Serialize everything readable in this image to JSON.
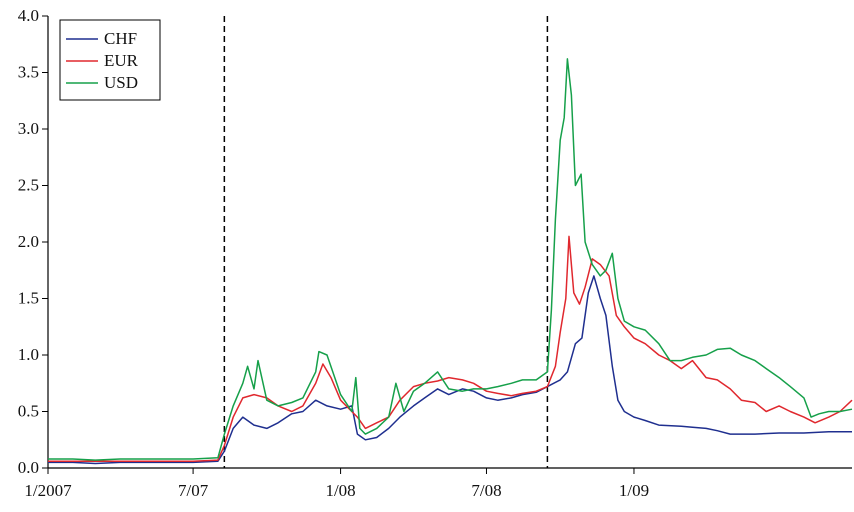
{
  "chart_data": {
    "type": "line",
    "title": "",
    "xlabel": "",
    "ylabel": "",
    "xlim": [
      "2007-01-01",
      "2009-09-30"
    ],
    "ylim": [
      0.0,
      4.0
    ],
    "x_tick_labels": [
      {
        "date": "2007-01-01",
        "label": "1/2007"
      },
      {
        "date": "2007-07-01",
        "label": "7/07"
      },
      {
        "date": "2008-01-01",
        "label": "1/08"
      },
      {
        "date": "2008-07-01",
        "label": "7/08"
      },
      {
        "date": "2009-01-01",
        "label": "1/09"
      }
    ],
    "y_tick_labels": [
      "0.0",
      "0.5",
      "1.0",
      "1.5",
      "2.0",
      "2.5",
      "3.0",
      "3.5",
      "4.0"
    ],
    "y_ticks": [
      0.0,
      0.5,
      1.0,
      1.5,
      2.0,
      2.5,
      3.0,
      3.5,
      4.0
    ],
    "grid": false,
    "legend_position": "top-left",
    "vertical_lines": [
      "2007-08-09",
      "2008-09-15"
    ],
    "series": [
      {
        "name": "CHF",
        "color": "#1f2f8f",
        "points": [
          [
            "2007-01-01",
            0.05
          ],
          [
            "2007-02-01",
            0.05
          ],
          [
            "2007-03-01",
            0.04
          ],
          [
            "2007-04-01",
            0.05
          ],
          [
            "2007-05-01",
            0.05
          ],
          [
            "2007-06-01",
            0.05
          ],
          [
            "2007-07-01",
            0.05
          ],
          [
            "2007-08-01",
            0.06
          ],
          [
            "2007-08-09",
            0.15
          ],
          [
            "2007-08-20",
            0.35
          ],
          [
            "2007-09-01",
            0.45
          ],
          [
            "2007-09-15",
            0.38
          ],
          [
            "2007-10-01",
            0.35
          ],
          [
            "2007-10-15",
            0.4
          ],
          [
            "2007-11-01",
            0.48
          ],
          [
            "2007-11-15",
            0.5
          ],
          [
            "2007-12-01",
            0.6
          ],
          [
            "2007-12-15",
            0.55
          ],
          [
            "2008-01-01",
            0.52
          ],
          [
            "2008-01-15",
            0.55
          ],
          [
            "2008-01-22",
            0.3
          ],
          [
            "2008-02-01",
            0.25
          ],
          [
            "2008-02-15",
            0.27
          ],
          [
            "2008-03-01",
            0.35
          ],
          [
            "2008-03-15",
            0.45
          ],
          [
            "2008-04-01",
            0.55
          ],
          [
            "2008-04-15",
            0.62
          ],
          [
            "2008-05-01",
            0.7
          ],
          [
            "2008-05-15",
            0.65
          ],
          [
            "2008-06-01",
            0.7
          ],
          [
            "2008-06-15",
            0.68
          ],
          [
            "2008-07-01",
            0.62
          ],
          [
            "2008-07-15",
            0.6
          ],
          [
            "2008-08-01",
            0.62
          ],
          [
            "2008-08-15",
            0.65
          ],
          [
            "2008-09-01",
            0.67
          ],
          [
            "2008-09-15",
            0.72
          ],
          [
            "2008-10-01",
            0.78
          ],
          [
            "2008-10-10",
            0.85
          ],
          [
            "2008-10-20",
            1.1
          ],
          [
            "2008-10-28",
            1.15
          ],
          [
            "2008-11-05",
            1.55
          ],
          [
            "2008-11-12",
            1.7
          ],
          [
            "2008-11-20",
            1.5
          ],
          [
            "2008-11-27",
            1.35
          ],
          [
            "2008-12-05",
            0.9
          ],
          [
            "2008-12-12",
            0.6
          ],
          [
            "2008-12-20",
            0.5
          ],
          [
            "2009-01-01",
            0.45
          ],
          [
            "2009-01-15",
            0.42
          ],
          [
            "2009-02-01",
            0.38
          ],
          [
            "2009-03-01",
            0.37
          ],
          [
            "2009-03-15",
            0.36
          ],
          [
            "2009-04-01",
            0.35
          ],
          [
            "2009-04-15",
            0.33
          ],
          [
            "2009-05-01",
            0.3
          ],
          [
            "2009-06-01",
            0.3
          ],
          [
            "2009-07-01",
            0.31
          ],
          [
            "2009-08-01",
            0.31
          ],
          [
            "2009-09-01",
            0.32
          ],
          [
            "2009-09-30",
            0.32
          ]
        ]
      },
      {
        "name": "EUR",
        "color": "#e0282e",
        "points": [
          [
            "2007-01-01",
            0.06
          ],
          [
            "2007-02-01",
            0.06
          ],
          [
            "2007-03-01",
            0.06
          ],
          [
            "2007-04-01",
            0.06
          ],
          [
            "2007-05-01",
            0.06
          ],
          [
            "2007-06-01",
            0.06
          ],
          [
            "2007-07-01",
            0.06
          ],
          [
            "2007-08-01",
            0.07
          ],
          [
            "2007-08-09",
            0.2
          ],
          [
            "2007-08-20",
            0.45
          ],
          [
            "2007-09-01",
            0.62
          ],
          [
            "2007-09-15",
            0.65
          ],
          [
            "2007-10-01",
            0.62
          ],
          [
            "2007-10-15",
            0.55
          ],
          [
            "2007-11-01",
            0.5
          ],
          [
            "2007-11-15",
            0.55
          ],
          [
            "2007-12-01",
            0.75
          ],
          [
            "2007-12-10",
            0.92
          ],
          [
            "2007-12-20",
            0.8
          ],
          [
            "2008-01-01",
            0.6
          ],
          [
            "2008-01-15",
            0.5
          ],
          [
            "2008-01-22",
            0.45
          ],
          [
            "2008-02-01",
            0.35
          ],
          [
            "2008-02-15",
            0.4
          ],
          [
            "2008-03-01",
            0.45
          ],
          [
            "2008-03-15",
            0.6
          ],
          [
            "2008-04-01",
            0.72
          ],
          [
            "2008-04-15",
            0.75
          ],
          [
            "2008-05-01",
            0.77
          ],
          [
            "2008-05-15",
            0.8
          ],
          [
            "2008-06-01",
            0.78
          ],
          [
            "2008-06-15",
            0.75
          ],
          [
            "2008-07-01",
            0.68
          ],
          [
            "2008-07-15",
            0.66
          ],
          [
            "2008-08-01",
            0.64
          ],
          [
            "2008-08-15",
            0.66
          ],
          [
            "2008-09-01",
            0.68
          ],
          [
            "2008-09-15",
            0.72
          ],
          [
            "2008-09-25",
            0.9
          ],
          [
            "2008-10-01",
            1.2
          ],
          [
            "2008-10-08",
            1.5
          ],
          [
            "2008-10-12",
            2.05
          ],
          [
            "2008-10-18",
            1.55
          ],
          [
            "2008-10-25",
            1.45
          ],
          [
            "2008-11-01",
            1.6
          ],
          [
            "2008-11-10",
            1.85
          ],
          [
            "2008-11-20",
            1.8
          ],
          [
            "2008-12-01",
            1.7
          ],
          [
            "2008-12-10",
            1.35
          ],
          [
            "2008-12-20",
            1.25
          ],
          [
            "2009-01-01",
            1.15
          ],
          [
            "2009-01-15",
            1.1
          ],
          [
            "2009-02-01",
            1.0
          ],
          [
            "2009-02-15",
            0.95
          ],
          [
            "2009-03-01",
            0.88
          ],
          [
            "2009-03-15",
            0.95
          ],
          [
            "2009-04-01",
            0.8
          ],
          [
            "2009-04-15",
            0.78
          ],
          [
            "2009-05-01",
            0.7
          ],
          [
            "2009-05-15",
            0.6
          ],
          [
            "2009-06-01",
            0.58
          ],
          [
            "2009-06-15",
            0.5
          ],
          [
            "2009-07-01",
            0.55
          ],
          [
            "2009-07-15",
            0.5
          ],
          [
            "2009-08-01",
            0.45
          ],
          [
            "2009-08-15",
            0.4
          ],
          [
            "2009-09-01",
            0.45
          ],
          [
            "2009-09-15",
            0.5
          ],
          [
            "2009-09-30",
            0.6
          ]
        ]
      },
      {
        "name": "USD",
        "color": "#16a04a",
        "points": [
          [
            "2007-01-01",
            0.08
          ],
          [
            "2007-02-01",
            0.08
          ],
          [
            "2007-03-01",
            0.07
          ],
          [
            "2007-04-01",
            0.08
          ],
          [
            "2007-05-01",
            0.08
          ],
          [
            "2007-06-01",
            0.08
          ],
          [
            "2007-07-01",
            0.08
          ],
          [
            "2007-08-01",
            0.09
          ],
          [
            "2007-08-09",
            0.3
          ],
          [
            "2007-08-20",
            0.55
          ],
          [
            "2007-09-01",
            0.75
          ],
          [
            "2007-09-07",
            0.9
          ],
          [
            "2007-09-15",
            0.7
          ],
          [
            "2007-09-20",
            0.95
          ],
          [
            "2007-10-01",
            0.6
          ],
          [
            "2007-10-15",
            0.55
          ],
          [
            "2007-11-01",
            0.58
          ],
          [
            "2007-11-15",
            0.62
          ],
          [
            "2007-12-01",
            0.85
          ],
          [
            "2007-12-05",
            1.03
          ],
          [
            "2007-12-15",
            1.0
          ],
          [
            "2008-01-01",
            0.65
          ],
          [
            "2008-01-15",
            0.5
          ],
          [
            "2008-01-20",
            0.8
          ],
          [
            "2008-01-25",
            0.35
          ],
          [
            "2008-02-01",
            0.3
          ],
          [
            "2008-02-15",
            0.35
          ],
          [
            "2008-03-01",
            0.45
          ],
          [
            "2008-03-10",
            0.75
          ],
          [
            "2008-03-20",
            0.5
          ],
          [
            "2008-04-01",
            0.68
          ],
          [
            "2008-04-15",
            0.75
          ],
          [
            "2008-05-01",
            0.85
          ],
          [
            "2008-05-15",
            0.7
          ],
          [
            "2008-06-01",
            0.68
          ],
          [
            "2008-06-15",
            0.7
          ],
          [
            "2008-07-01",
            0.7
          ],
          [
            "2008-07-15",
            0.72
          ],
          [
            "2008-08-01",
            0.75
          ],
          [
            "2008-08-15",
            0.78
          ],
          [
            "2008-09-01",
            0.78
          ],
          [
            "2008-09-15",
            0.85
          ],
          [
            "2008-09-20",
            1.4
          ],
          [
            "2008-09-25",
            2.2
          ],
          [
            "2008-10-01",
            2.9
          ],
          [
            "2008-10-06",
            3.1
          ],
          [
            "2008-10-10",
            3.62
          ],
          [
            "2008-10-15",
            3.3
          ],
          [
            "2008-10-20",
            2.5
          ],
          [
            "2008-10-27",
            2.6
          ],
          [
            "2008-11-01",
            2.0
          ],
          [
            "2008-11-10",
            1.8
          ],
          [
            "2008-11-20",
            1.7
          ],
          [
            "2008-11-27",
            1.75
          ],
          [
            "2008-12-05",
            1.9
          ],
          [
            "2008-12-12",
            1.5
          ],
          [
            "2008-12-20",
            1.3
          ],
          [
            "2009-01-01",
            1.25
          ],
          [
            "2009-01-15",
            1.22
          ],
          [
            "2009-02-01",
            1.1
          ],
          [
            "2009-02-15",
            0.95
          ],
          [
            "2009-03-01",
            0.95
          ],
          [
            "2009-03-15",
            0.98
          ],
          [
            "2009-04-01",
            1.0
          ],
          [
            "2009-04-15",
            1.05
          ],
          [
            "2009-05-01",
            1.06
          ],
          [
            "2009-05-15",
            1.0
          ],
          [
            "2009-06-01",
            0.95
          ],
          [
            "2009-06-15",
            0.88
          ],
          [
            "2009-07-01",
            0.8
          ],
          [
            "2009-07-15",
            0.72
          ],
          [
            "2009-08-01",
            0.62
          ],
          [
            "2009-08-10",
            0.45
          ],
          [
            "2009-08-20",
            0.48
          ],
          [
            "2009-09-01",
            0.5
          ],
          [
            "2009-09-15",
            0.5
          ],
          [
            "2009-09-30",
            0.52
          ]
        ]
      }
    ]
  }
}
